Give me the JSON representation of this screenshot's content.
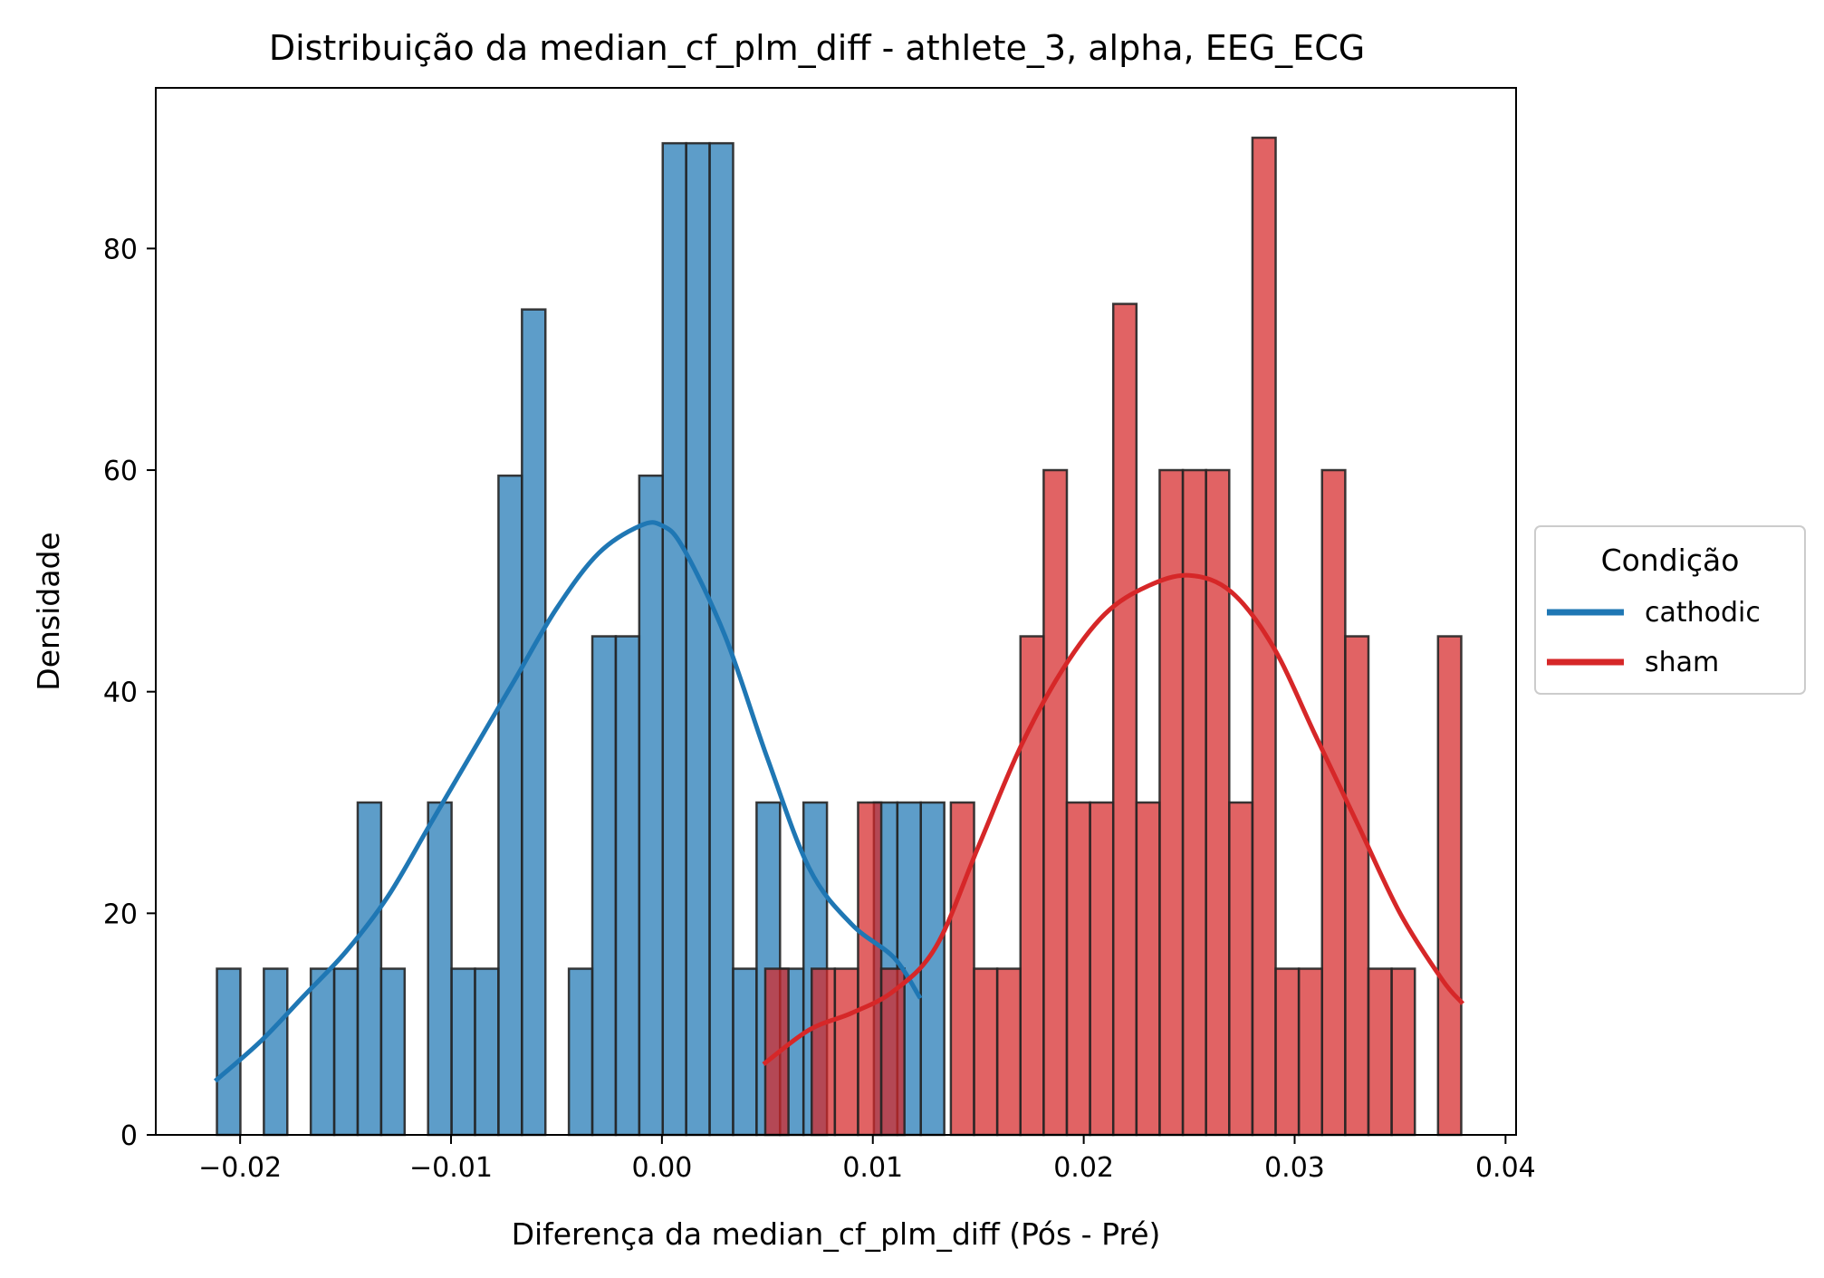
{
  "chart_data": {
    "type": "histogram",
    "title": "Distribuição da median_cf_plm_diff - athlete_3, alpha, EEG_ECG",
    "xlabel": "Diferença da median_cf_plm_diff (Pós - Pré)",
    "ylabel": "Densidade",
    "xlim": [
      -0.024,
      0.0405
    ],
    "ylim": [
      0,
      94.5
    ],
    "xticks": [
      -0.02,
      -0.01,
      0.0,
      0.01,
      0.02,
      0.03,
      0.04
    ],
    "xtick_labels": [
      "−0.02",
      "−0.01",
      "0.00",
      "0.01",
      "0.02",
      "0.03",
      "0.04"
    ],
    "yticks": [
      0,
      20,
      40,
      60,
      80
    ],
    "ytick_labels": [
      "0",
      "20",
      "40",
      "60",
      "80"
    ],
    "grid": false,
    "legend": {
      "title": "Condição",
      "placement": "outside-right"
    },
    "series": [
      {
        "name": "cathodic",
        "color": "#1f77b4",
        "bin_start": -0.0211,
        "bin_width": 0.0011125,
        "densities": [
          15,
          0,
          15,
          0,
          15,
          15,
          30,
          15,
          0,
          30,
          15,
          15,
          59.5,
          74.5,
          0,
          15,
          45,
          45,
          59.5,
          89.5,
          89.5,
          89.5,
          15,
          30,
          15,
          30,
          0,
          0,
          30,
          30,
          30
        ],
        "kde": {
          "x": [
            -0.0211,
            -0.019,
            -0.017,
            -0.015,
            -0.013,
            -0.011,
            -0.009,
            -0.007,
            -0.005,
            -0.003,
            -0.001,
            0.0,
            0.001,
            0.003,
            0.005,
            0.007,
            0.009,
            0.011,
            0.0122
          ],
          "y": [
            5,
            8.5,
            12.5,
            16.5,
            21.5,
            28,
            34.5,
            41,
            47.5,
            52.5,
            55,
            55,
            53,
            45,
            34,
            24,
            19,
            16,
            12.5
          ]
        }
      },
      {
        "name": "sham",
        "color": "#d62728",
        "bin_start": 0.0049,
        "bin_width": 0.0011,
        "densities": [
          15,
          0,
          15,
          15,
          30,
          15,
          0,
          0,
          30,
          15,
          15,
          45,
          60,
          30,
          30,
          75,
          30,
          60,
          60,
          60,
          30,
          90,
          15,
          15,
          60,
          45,
          15,
          15,
          0,
          45
        ],
        "kde": {
          "x": [
            0.0049,
            0.007,
            0.009,
            0.011,
            0.013,
            0.015,
            0.017,
            0.019,
            0.021,
            0.023,
            0.025,
            0.027,
            0.029,
            0.031,
            0.033,
            0.035,
            0.037,
            0.0379
          ],
          "y": [
            6.5,
            9.5,
            11,
            13,
            17,
            26,
            35,
            42,
            47,
            49.5,
            50.5,
            49,
            44,
            36,
            28,
            20,
            14,
            12
          ]
        }
      }
    ]
  }
}
